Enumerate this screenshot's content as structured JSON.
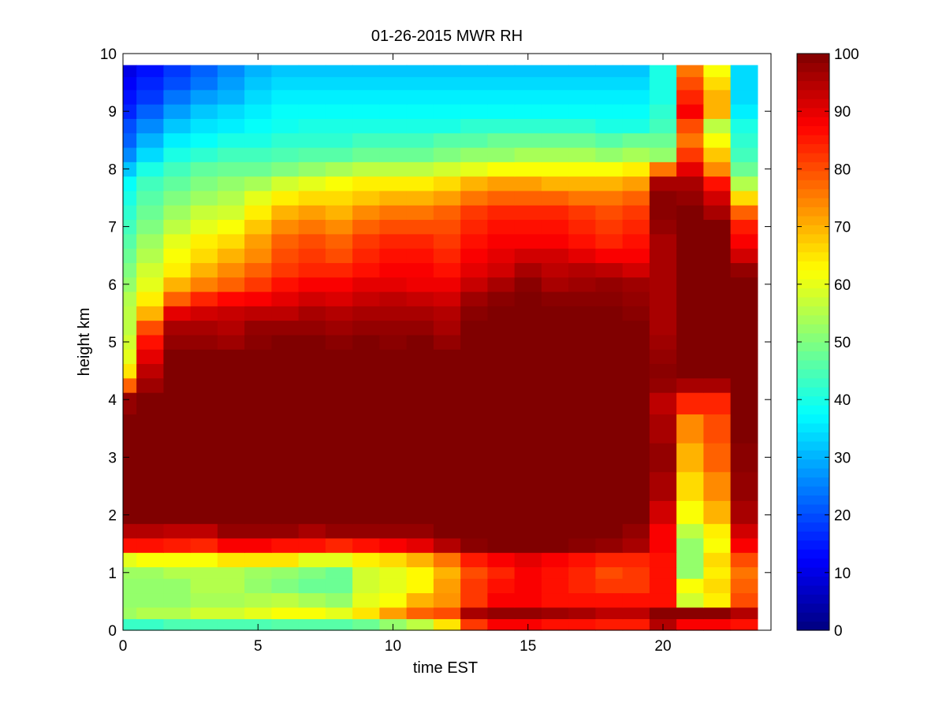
{
  "chart_data": {
    "type": "heatmap",
    "title": "01-26-2015 MWR RH",
    "xlabel": "time EST",
    "ylabel": "height km",
    "xlim": [
      0,
      24
    ],
    "ylim": [
      0,
      10
    ],
    "x_ticks": [
      0,
      5,
      10,
      15,
      20
    ],
    "y_ticks": [
      0,
      1,
      2,
      3,
      4,
      5,
      6,
      7,
      8,
      9,
      10
    ],
    "colorbar": {
      "colormap": "jet",
      "clim": [
        0,
        100
      ],
      "ticks": [
        0,
        10,
        20,
        30,
        40,
        50,
        60,
        70,
        80,
        90,
        100
      ]
    },
    "grid": false,
    "time_hours": [
      0,
      1,
      2,
      3,
      4,
      5,
      6,
      7,
      8,
      9,
      10,
      11,
      12,
      13,
      14,
      15,
      16,
      17,
      18,
      19,
      20,
      21,
      22,
      23
    ],
    "height_km": [
      0.1,
      0.3,
      0.5,
      0.8,
      1.0,
      1.2,
      1.5,
      1.7,
      2.0,
      2.5,
      3.0,
      3.5,
      4.0,
      4.25,
      4.5,
      4.75,
      5.0,
      5.25,
      5.5,
      5.75,
      6.0,
      6.25,
      6.5,
      6.75,
      7.0,
      7.25,
      7.5,
      7.75,
      8.0,
      8.25,
      8.5,
      8.75,
      9.0,
      9.25,
      9.5,
      9.7
    ],
    "rh_percent": [
      [
        43,
        43,
        45,
        45,
        45,
        45,
        46,
        46,
        46,
        48,
        52,
        56,
        65,
        82,
        88,
        88,
        86,
        86,
        85,
        85,
        95,
        88,
        88,
        86
      ],
      [
        53,
        55,
        55,
        58,
        58,
        60,
        62,
        62,
        60,
        65,
        72,
        78,
        80,
        96,
        98,
        98,
        97,
        96,
        94,
        94,
        99,
        99,
        99,
        95
      ],
      [
        52,
        52,
        52,
        54,
        54,
        55,
        56,
        54,
        52,
        60,
        62,
        70,
        73,
        82,
        88,
        88,
        86,
        86,
        86,
        86,
        86,
        58,
        64,
        80
      ],
      [
        52,
        52,
        52,
        55,
        55,
        52,
        50,
        48,
        48,
        58,
        60,
        63,
        72,
        82,
        86,
        88,
        86,
        84,
        82,
        82,
        86,
        62,
        66,
        78
      ],
      [
        53,
        53,
        55,
        55,
        55,
        53,
        52,
        50,
        48,
        58,
        60,
        63,
        70,
        80,
        84,
        88,
        86,
        84,
        80,
        82,
        86,
        52,
        64,
        76
      ],
      [
        60,
        62,
        62,
        62,
        65,
        65,
        65,
        60,
        60,
        64,
        66,
        70,
        76,
        85,
        88,
        90,
        88,
        86,
        84,
        84,
        86,
        52,
        66,
        80
      ],
      [
        86,
        86,
        85,
        84,
        88,
        88,
        86,
        86,
        84,
        86,
        88,
        90,
        95,
        99,
        100,
        100,
        100,
        99,
        98,
        96,
        88,
        52,
        62,
        88
      ],
      [
        95,
        95,
        94,
        94,
        98,
        98,
        98,
        96,
        98,
        98,
        98,
        98,
        100,
        100,
        100,
        100,
        100,
        100,
        100,
        98,
        88,
        56,
        64,
        92
      ],
      [
        100,
        100,
        100,
        100,
        100,
        100,
        100,
        100,
        100,
        100,
        100,
        100,
        100,
        100,
        100,
        100,
        100,
        100,
        100,
        100,
        92,
        62,
        70,
        96
      ],
      [
        100,
        100,
        100,
        100,
        100,
        100,
        100,
        100,
        100,
        100,
        100,
        100,
        100,
        100,
        100,
        100,
        100,
        100,
        100,
        100,
        96,
        66,
        74,
        98
      ],
      [
        100,
        100,
        100,
        100,
        100,
        100,
        100,
        100,
        100,
        100,
        100,
        100,
        100,
        100,
        100,
        100,
        100,
        100,
        100,
        100,
        98,
        70,
        78,
        99
      ],
      [
        100,
        100,
        100,
        100,
        100,
        100,
        100,
        100,
        100,
        100,
        100,
        100,
        100,
        100,
        100,
        100,
        100,
        100,
        100,
        100,
        96,
        74,
        80,
        100
      ],
      [
        98,
        100,
        100,
        100,
        100,
        100,
        100,
        100,
        100,
        100,
        100,
        100,
        100,
        100,
        100,
        100,
        100,
        100,
        100,
        100,
        94,
        84,
        84,
        100
      ],
      [
        78,
        97,
        100,
        100,
        100,
        100,
        100,
        100,
        100,
        100,
        100,
        100,
        100,
        100,
        100,
        100,
        100,
        100,
        100,
        100,
        98,
        96,
        96,
        100
      ],
      [
        65,
        94,
        100,
        100,
        100,
        100,
        100,
        100,
        100,
        100,
        100,
        100,
        100,
        100,
        100,
        100,
        100,
        100,
        100,
        100,
        99,
        100,
        100,
        100
      ],
      [
        60,
        90,
        100,
        100,
        100,
        100,
        100,
        100,
        100,
        100,
        100,
        100,
        100,
        100,
        100,
        100,
        100,
        100,
        100,
        100,
        98,
        100,
        100,
        100
      ],
      [
        58,
        86,
        98,
        98,
        97,
        99,
        100,
        100,
        99,
        100,
        99,
        100,
        98,
        100,
        100,
        100,
        100,
        100,
        100,
        100,
        97,
        100,
        100,
        100
      ],
      [
        56,
        80,
        96,
        96,
        95,
        98,
        98,
        98,
        97,
        98,
        98,
        98,
        96,
        100,
        100,
        100,
        100,
        100,
        100,
        100,
        96,
        100,
        100,
        100
      ],
      [
        56,
        70,
        90,
        92,
        93,
        94,
        94,
        96,
        95,
        96,
        96,
        96,
        95,
        99,
        100,
        100,
        100,
        100,
        100,
        99,
        96,
        100,
        100,
        100
      ],
      [
        55,
        64,
        78,
        84,
        87,
        88,
        90,
        92,
        91,
        93,
        94,
        93,
        92,
        97,
        99,
        100,
        99,
        99,
        99,
        98,
        96,
        100,
        100,
        100
      ],
      [
        52,
        60,
        70,
        75,
        78,
        82,
        86,
        88,
        88,
        90,
        90,
        89,
        89,
        93,
        96,
        99,
        96,
        97,
        98,
        97,
        96,
        100,
        100,
        100
      ],
      [
        50,
        58,
        64,
        70,
        74,
        78,
        82,
        84,
        84,
        86,
        88,
        88,
        86,
        90,
        92,
        96,
        94,
        95,
        94,
        92,
        96,
        100,
        100,
        98
      ],
      [
        48,
        55,
        62,
        66,
        70,
        74,
        80,
        82,
        80,
        84,
        86,
        86,
        84,
        88,
        90,
        92,
        92,
        90,
        88,
        88,
        96,
        100,
        100,
        92
      ],
      [
        46,
        53,
        60,
        64,
        66,
        72,
        78,
        80,
        78,
        82,
        84,
        84,
        82,
        86,
        88,
        88,
        88,
        86,
        84,
        86,
        96,
        100,
        100,
        88
      ],
      [
        44,
        50,
        56,
        60,
        62,
        68,
        74,
        76,
        74,
        78,
        80,
        80,
        80,
        84,
        86,
        86,
        86,
        84,
        82,
        84,
        98,
        100,
        100,
        85
      ],
      [
        42,
        48,
        53,
        57,
        58,
        64,
        70,
        72,
        70,
        74,
        76,
        76,
        78,
        82,
        84,
        84,
        84,
        82,
        80,
        82,
        99,
        100,
        96,
        78
      ],
      [
        40,
        46,
        50,
        53,
        55,
        60,
        64,
        66,
        66,
        68,
        70,
        70,
        72,
        76,
        78,
        78,
        78,
        76,
        76,
        78,
        99,
        98,
        92,
        66
      ],
      [
        38,
        44,
        47,
        50,
        52,
        54,
        58,
        60,
        62,
        64,
        64,
        64,
        66,
        70,
        72,
        72,
        70,
        70,
        70,
        72,
        96,
        96,
        86,
        55
      ],
      [
        32,
        40,
        44,
        47,
        48,
        48,
        50,
        52,
        54,
        56,
        56,
        56,
        58,
        60,
        62,
        62,
        62,
        62,
        62,
        64,
        76,
        90,
        74,
        48
      ],
      [
        26,
        34,
        40,
        42,
        44,
        44,
        45,
        46,
        46,
        48,
        48,
        48,
        50,
        52,
        52,
        54,
        54,
        54,
        52,
        54,
        52,
        82,
        68,
        44
      ],
      [
        22,
        30,
        36,
        38,
        40,
        40,
        42,
        42,
        42,
        44,
        44,
        44,
        46,
        46,
        48,
        48,
        48,
        48,
        46,
        48,
        48,
        76,
        62,
        42
      ],
      [
        20,
        26,
        32,
        35,
        36,
        38,
        39,
        40,
        40,
        40,
        40,
        40,
        40,
        42,
        42,
        42,
        42,
        42,
        40,
        40,
        44,
        80,
        56,
        40
      ],
      [
        16,
        22,
        28,
        32,
        34,
        36,
        38,
        38,
        38,
        38,
        38,
        38,
        38,
        38,
        38,
        38,
        38,
        38,
        38,
        38,
        42,
        88,
        70,
        36
      ],
      [
        14,
        18,
        24,
        28,
        30,
        34,
        36,
        36,
        36,
        36,
        36,
        36,
        36,
        36,
        36,
        36,
        36,
        36,
        36,
        36,
        40,
        84,
        70,
        34
      ],
      [
        12,
        16,
        20,
        24,
        28,
        32,
        34,
        34,
        34,
        34,
        34,
        34,
        34,
        34,
        34,
        34,
        34,
        34,
        34,
        34,
        40,
        80,
        66,
        34
      ],
      [
        10,
        14,
        18,
        22,
        26,
        30,
        32,
        32,
        32,
        32,
        32,
        32,
        32,
        32,
        32,
        32,
        32,
        32,
        32,
        32,
        40,
        76,
        62,
        34
      ]
    ]
  }
}
